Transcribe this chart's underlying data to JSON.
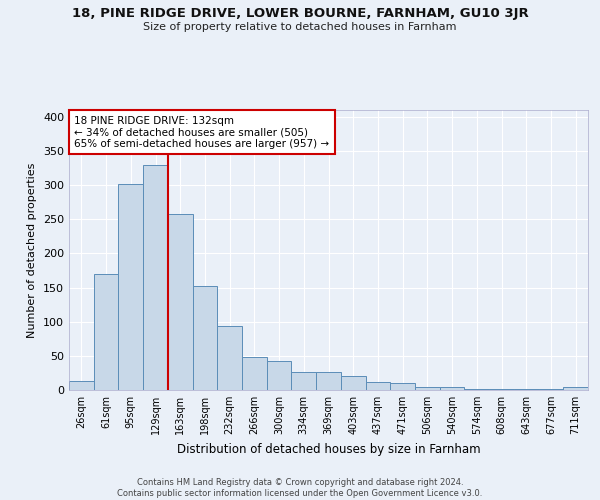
{
  "title1": "18, PINE RIDGE DRIVE, LOWER BOURNE, FARNHAM, GU10 3JR",
  "title2": "Size of property relative to detached houses in Farnham",
  "xlabel": "Distribution of detached houses by size in Farnham",
  "ylabel": "Number of detached properties",
  "bar_labels": [
    "26sqm",
    "61sqm",
    "95sqm",
    "129sqm",
    "163sqm",
    "198sqm",
    "232sqm",
    "266sqm",
    "300sqm",
    "334sqm",
    "369sqm",
    "403sqm",
    "437sqm",
    "471sqm",
    "506sqm",
    "540sqm",
    "574sqm",
    "608sqm",
    "643sqm",
    "677sqm",
    "711sqm"
  ],
  "bar_values": [
    13,
    170,
    302,
    330,
    257,
    152,
    93,
    49,
    43,
    27,
    27,
    21,
    11,
    10,
    5,
    5,
    2,
    2,
    2,
    1,
    4
  ],
  "bar_color": "#c8d8e8",
  "bar_edge_color": "#5b8db8",
  "vline_x_index": 3.5,
  "vline_color": "#cc0000",
  "annotation_text": "18 PINE RIDGE DRIVE: 132sqm\n← 34% of detached houses are smaller (505)\n65% of semi-detached houses are larger (957) →",
  "annotation_box_color": "#ffffff",
  "annotation_box_edge": "#cc0000",
  "ylim": [
    0,
    410
  ],
  "yticks": [
    0,
    50,
    100,
    150,
    200,
    250,
    300,
    350,
    400
  ],
  "footer": "Contains HM Land Registry data © Crown copyright and database right 2024.\nContains public sector information licensed under the Open Government Licence v3.0.",
  "bg_color": "#eaf0f8",
  "plot_bg_color": "#eaf0f8",
  "grid_color": "#ffffff"
}
